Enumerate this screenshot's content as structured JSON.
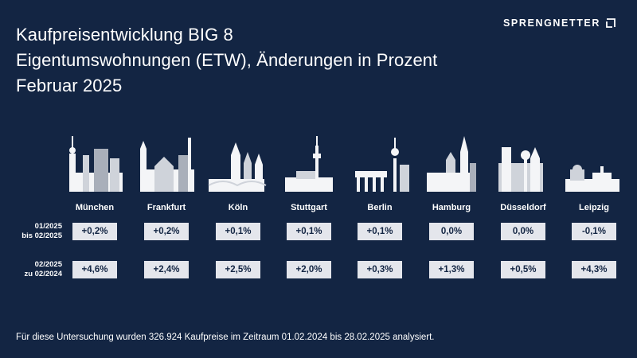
{
  "title": "Kaufpreisentwicklung BIG 8",
  "subtitle": "Eigentumswohnungen (ETW), Änderungen in Prozent",
  "period": "Februar 2025",
  "logo": {
    "text": "SPRENGNETTER"
  },
  "colors": {
    "background": "#132543",
    "box": "#e4e6ec",
    "text_dark": "#132543",
    "skyline_light": "#f4f5f7",
    "skyline_mid": "#cfd3da",
    "skyline_dark": "#a9afba"
  },
  "chart_data": {
    "type": "table",
    "categories": [
      "München",
      "Frankfurt",
      "Köln",
      "Stuttgart",
      "Berlin",
      "Hamburg",
      "Düsseldorf",
      "Leipzig"
    ],
    "series": [
      {
        "name": "01/2025 bis 02/2025",
        "label_lines": [
          "01/2025",
          "bis 02/2025"
        ],
        "values": [
          0.2,
          0.2,
          0.1,
          0.1,
          0.1,
          0.0,
          0.0,
          -0.1
        ],
        "labels": [
          "+0,2%",
          "+0,2%",
          "+0,1%",
          "+0,1%",
          "+0,1%",
          "0,0%",
          "0,0%",
          "-0,1%"
        ]
      },
      {
        "name": "02/2025 zu 02/2024",
        "label_lines": [
          "02/2025",
          "zu 02/2024"
        ],
        "values": [
          4.6,
          2.4,
          2.5,
          2.0,
          0.3,
          1.3,
          0.5,
          4.3
        ],
        "labels": [
          "+4,6%",
          "+2,4%",
          "+2,5%",
          "+2,0%",
          "+0,3%",
          "+1,3%",
          "+0,5%",
          "+4,3%"
        ]
      }
    ]
  },
  "footer": "Für diese Untersuchung wurden 326.924 Kaufpreise im Zeitraum 01.02.2024 bis 28.02.2025 analysiert."
}
